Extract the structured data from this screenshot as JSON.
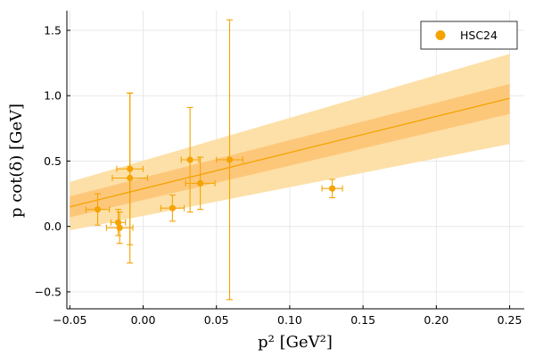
{
  "chart_data": {
    "type": "scatter",
    "xlabel": "p² [GeV²]",
    "ylabel": "p cot(δ) [GeV]",
    "xlim": [
      -0.052,
      0.26
    ],
    "ylim": [
      -0.63,
      1.65
    ],
    "xticks": [
      -0.05,
      0.0,
      0.05,
      0.1,
      0.15,
      0.2,
      0.25
    ],
    "xtick_labels": [
      "−0.05",
      "0.00",
      "0.05",
      "0.10",
      "0.15",
      "0.20",
      "0.25"
    ],
    "yticks": [
      -0.5,
      0.0,
      0.5,
      1.0,
      1.5
    ],
    "ytick_labels": [
      "−0.5",
      "0.0",
      "0.5",
      "1.0",
      "1.5"
    ],
    "grid": true,
    "legend_position": "top-right",
    "colors": {
      "series": "#f5a300",
      "band_outer": "#fde0a8",
      "band_inner": "#fdc77a",
      "axis": "#000000",
      "grid": "#e8e8e8"
    },
    "series": [
      {
        "name": "HSC24",
        "points": [
          {
            "x": -0.031,
            "xerr": 0.008,
            "y": 0.13,
            "yerr": 0.12
          },
          {
            "x": -0.017,
            "xerr": 0.005,
            "y": 0.03,
            "yerr": 0.1
          },
          {
            "x": -0.016,
            "xerr": 0.009,
            "y": -0.01,
            "yerr": 0.12
          },
          {
            "x": -0.009,
            "xerr": 0.009,
            "y": 0.44,
            "yerr": 0.58
          },
          {
            "x": -0.009,
            "xerr": 0.012,
            "y": 0.37,
            "yerr": 0.65
          },
          {
            "x": 0.02,
            "xerr": 0.008,
            "y": 0.14,
            "yerr": 0.1
          },
          {
            "x": 0.032,
            "xerr": 0.006,
            "y": 0.51,
            "yerr": 0.4
          },
          {
            "x": 0.039,
            "xerr": 0.01,
            "y": 0.33,
            "yerr": 0.2
          },
          {
            "x": 0.059,
            "xerr": 0.009,
            "y": 0.51,
            "yerr": 1.07
          },
          {
            "x": 0.129,
            "xerr": 0.007,
            "y": 0.29,
            "yerr": 0.07
          }
        ]
      }
    ],
    "fit": {
      "x": [
        -0.05,
        0.25
      ],
      "y": [
        0.15,
        0.98
      ],
      "band_1sigma": {
        "lower": [
          0.07,
          0.86
        ],
        "upper": [
          0.23,
          1.09
        ]
      },
      "band_2sigma": {
        "lower": [
          -0.03,
          0.63
        ],
        "upper": [
          0.34,
          1.32
        ]
      }
    }
  }
}
